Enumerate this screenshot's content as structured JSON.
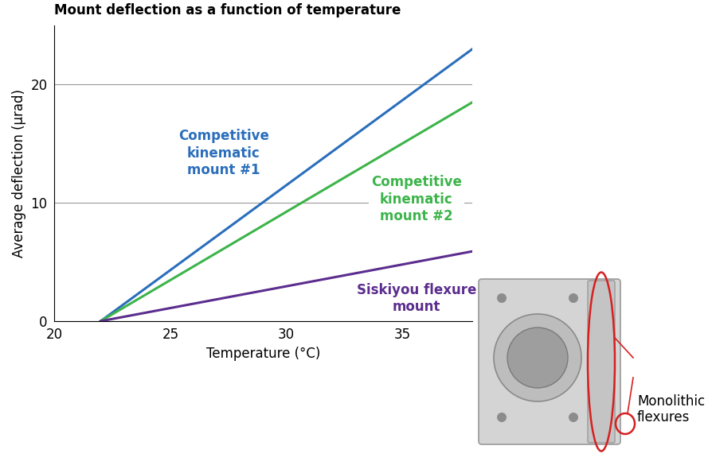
{
  "chart_data": {
    "type": "line",
    "title": "Mount deflection as a function of temperature",
    "x_label": "Temperature (°C)",
    "y_label": "Average deflection (µrad)",
    "x": [
      22,
      38
    ],
    "series": [
      {
        "name": "Competitive\nkinematic\nmount #1",
        "color": "#2a6ebb",
        "values": [
          0,
          23
        ]
      },
      {
        "name": "Competitive\nkinematic\nmount #2",
        "color": "#3cb44a",
        "values": [
          0,
          18.5
        ]
      },
      {
        "name": "Siskiyou flexure\nmount",
        "color": "#5b2d8e",
        "values": [
          0,
          5.9
        ]
      }
    ],
    "xlim": [
      20,
      38
    ],
    "xticks": [
      20,
      25,
      30,
      35
    ],
    "ylim": [
      0,
      25
    ],
    "yticks": [
      0,
      10,
      20
    ],
    "grid": true,
    "annotations": [
      {
        "text": "Monolithic\nflexures",
        "color": "#d62020"
      }
    ]
  }
}
